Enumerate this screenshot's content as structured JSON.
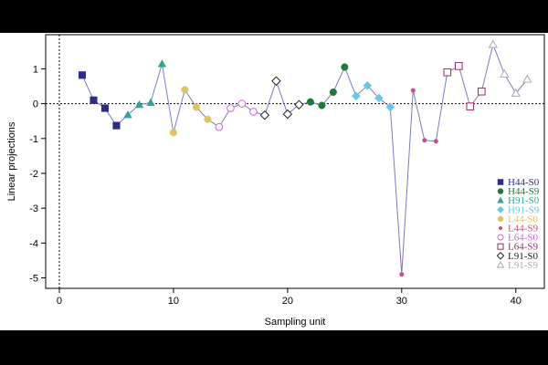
{
  "chart_data": {
    "type": "line",
    "xlabel": "Sampling unit",
    "ylabel": "Linear projections",
    "xlim": [
      -1.2,
      42.5
    ],
    "ylim": [
      -5.3,
      1.98
    ],
    "xticks": [
      0,
      10,
      20,
      30,
      40
    ],
    "yticks": [
      -5,
      -4,
      -3,
      -2,
      -1,
      0,
      1
    ],
    "reference_lines": {
      "x": 0,
      "y": 0
    },
    "line_color": "#7a7ac8",
    "series": [
      {
        "name": "H44-S0",
        "color": "#2e2a8a",
        "marker": "square-filled",
        "points": [
          [
            2,
            0.82
          ],
          [
            3,
            0.1
          ],
          [
            4,
            -0.13
          ],
          [
            5,
            -0.63
          ]
        ]
      },
      {
        "name": "H44-S9",
        "color": "#1f7a3a",
        "marker": "circle-filled",
        "points": [
          [
            22,
            0.05
          ],
          [
            23,
            -0.05
          ],
          [
            24,
            0.33
          ],
          [
            25,
            1.05
          ]
        ]
      },
      {
        "name": "H91-S0",
        "color": "#2fa596",
        "marker": "triangle-filled",
        "points": [
          [
            6,
            -0.32
          ],
          [
            7,
            -0.03
          ],
          [
            8,
            0.03
          ],
          [
            9,
            1.14
          ]
        ]
      },
      {
        "name": "H91-S9",
        "color": "#66c8e6",
        "marker": "diamond-filled",
        "points": [
          [
            26,
            0.22
          ],
          [
            27,
            0.52
          ],
          [
            28,
            0.16
          ],
          [
            29,
            -0.1
          ]
        ]
      },
      {
        "name": "L44-S0",
        "color": "#e0c462",
        "marker": "circle-filled",
        "points": [
          [
            10,
            -0.83
          ],
          [
            11,
            0.4
          ],
          [
            12,
            -0.1
          ],
          [
            13,
            -0.45
          ]
        ]
      },
      {
        "name": "L44-S9",
        "color": "#c8507a",
        "marker": "dot",
        "points": [
          [
            30,
            -4.9
          ],
          [
            31,
            0.38
          ],
          [
            32,
            -1.05
          ],
          [
            33,
            -1.08
          ]
        ]
      },
      {
        "name": "L64-S0",
        "color": "#cc66cc",
        "marker": "circle-open",
        "points": [
          [
            14,
            -0.67
          ],
          [
            15,
            -0.13
          ],
          [
            16,
            0.0
          ],
          [
            17,
            -0.23
          ]
        ]
      },
      {
        "name": "L64-S9",
        "color": "#9a2a6a",
        "marker": "square-open",
        "points": [
          [
            34,
            0.9
          ],
          [
            35,
            1.08
          ],
          [
            36,
            -0.08
          ],
          [
            37,
            0.35
          ]
        ]
      },
      {
        "name": "L91-S0",
        "color": "#222222",
        "marker": "diamond-open",
        "points": [
          [
            18,
            -0.33
          ],
          [
            19,
            0.65
          ],
          [
            20,
            -0.3
          ],
          [
            21,
            -0.03
          ]
        ]
      },
      {
        "name": "L91-S9",
        "color": "#aaaaaa",
        "marker": "triangle-open",
        "points": [
          [
            38,
            1.7
          ],
          [
            39,
            0.85
          ],
          [
            40,
            0.3
          ],
          [
            41,
            0.7
          ]
        ]
      }
    ]
  }
}
